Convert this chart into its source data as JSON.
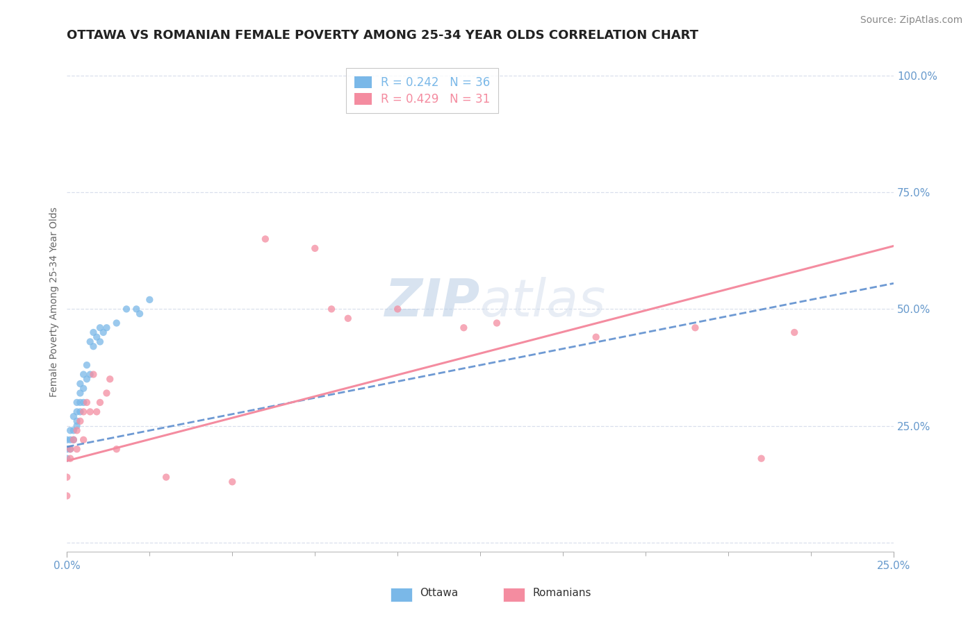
{
  "title": "OTTAWA VS ROMANIAN FEMALE POVERTY AMONG 25-34 YEAR OLDS CORRELATION CHART",
  "source": "Source: ZipAtlas.com",
  "ylabel": "Female Poverty Among 25-34 Year Olds",
  "xlim": [
    0.0,
    0.25
  ],
  "ylim": [
    -0.02,
    1.05
  ],
  "yticks": [
    0.0,
    0.25,
    0.5,
    0.75,
    1.0
  ],
  "background_color": "#ffffff",
  "grid_color": "#d0d8e8",
  "ottawa_color": "#7ab8e8",
  "romanian_color": "#f48ca0",
  "ottawa_line_color": "#5588cc",
  "ottawa_R": 0.242,
  "ottawa_N": 36,
  "romanian_R": 0.429,
  "romanian_N": 31,
  "ottawa_points_x": [
    0.0,
    0.0,
    0.0,
    0.001,
    0.001,
    0.001,
    0.002,
    0.002,
    0.002,
    0.003,
    0.003,
    0.003,
    0.003,
    0.004,
    0.004,
    0.004,
    0.004,
    0.005,
    0.005,
    0.005,
    0.006,
    0.006,
    0.007,
    0.007,
    0.008,
    0.008,
    0.009,
    0.01,
    0.01,
    0.011,
    0.012,
    0.015,
    0.018,
    0.021,
    0.022,
    0.025
  ],
  "ottawa_points_y": [
    0.2,
    0.18,
    0.22,
    0.2,
    0.22,
    0.24,
    0.24,
    0.22,
    0.27,
    0.25,
    0.26,
    0.28,
    0.3,
    0.32,
    0.34,
    0.28,
    0.3,
    0.3,
    0.33,
    0.36,
    0.38,
    0.35,
    0.36,
    0.43,
    0.42,
    0.45,
    0.44,
    0.43,
    0.46,
    0.45,
    0.46,
    0.47,
    0.5,
    0.5,
    0.49,
    0.52
  ],
  "romanian_points_x": [
    0.0,
    0.0,
    0.001,
    0.001,
    0.002,
    0.003,
    0.003,
    0.004,
    0.005,
    0.005,
    0.006,
    0.007,
    0.008,
    0.009,
    0.01,
    0.012,
    0.013,
    0.015,
    0.03,
    0.05,
    0.06,
    0.075,
    0.08,
    0.085,
    0.1,
    0.12,
    0.13,
    0.16,
    0.19,
    0.21,
    0.22
  ],
  "romanian_points_y": [
    0.14,
    0.1,
    0.18,
    0.2,
    0.22,
    0.2,
    0.24,
    0.26,
    0.22,
    0.28,
    0.3,
    0.28,
    0.36,
    0.28,
    0.3,
    0.32,
    0.35,
    0.2,
    0.14,
    0.13,
    0.65,
    0.63,
    0.5,
    0.48,
    0.5,
    0.46,
    0.47,
    0.44,
    0.46,
    0.18,
    0.45
  ],
  "watermark_zip": "ZIP",
  "watermark_atlas": "atlas",
  "title_fontsize": 13,
  "axis_label_fontsize": 10,
  "tick_fontsize": 11,
  "legend_fontsize": 12,
  "source_fontsize": 10
}
